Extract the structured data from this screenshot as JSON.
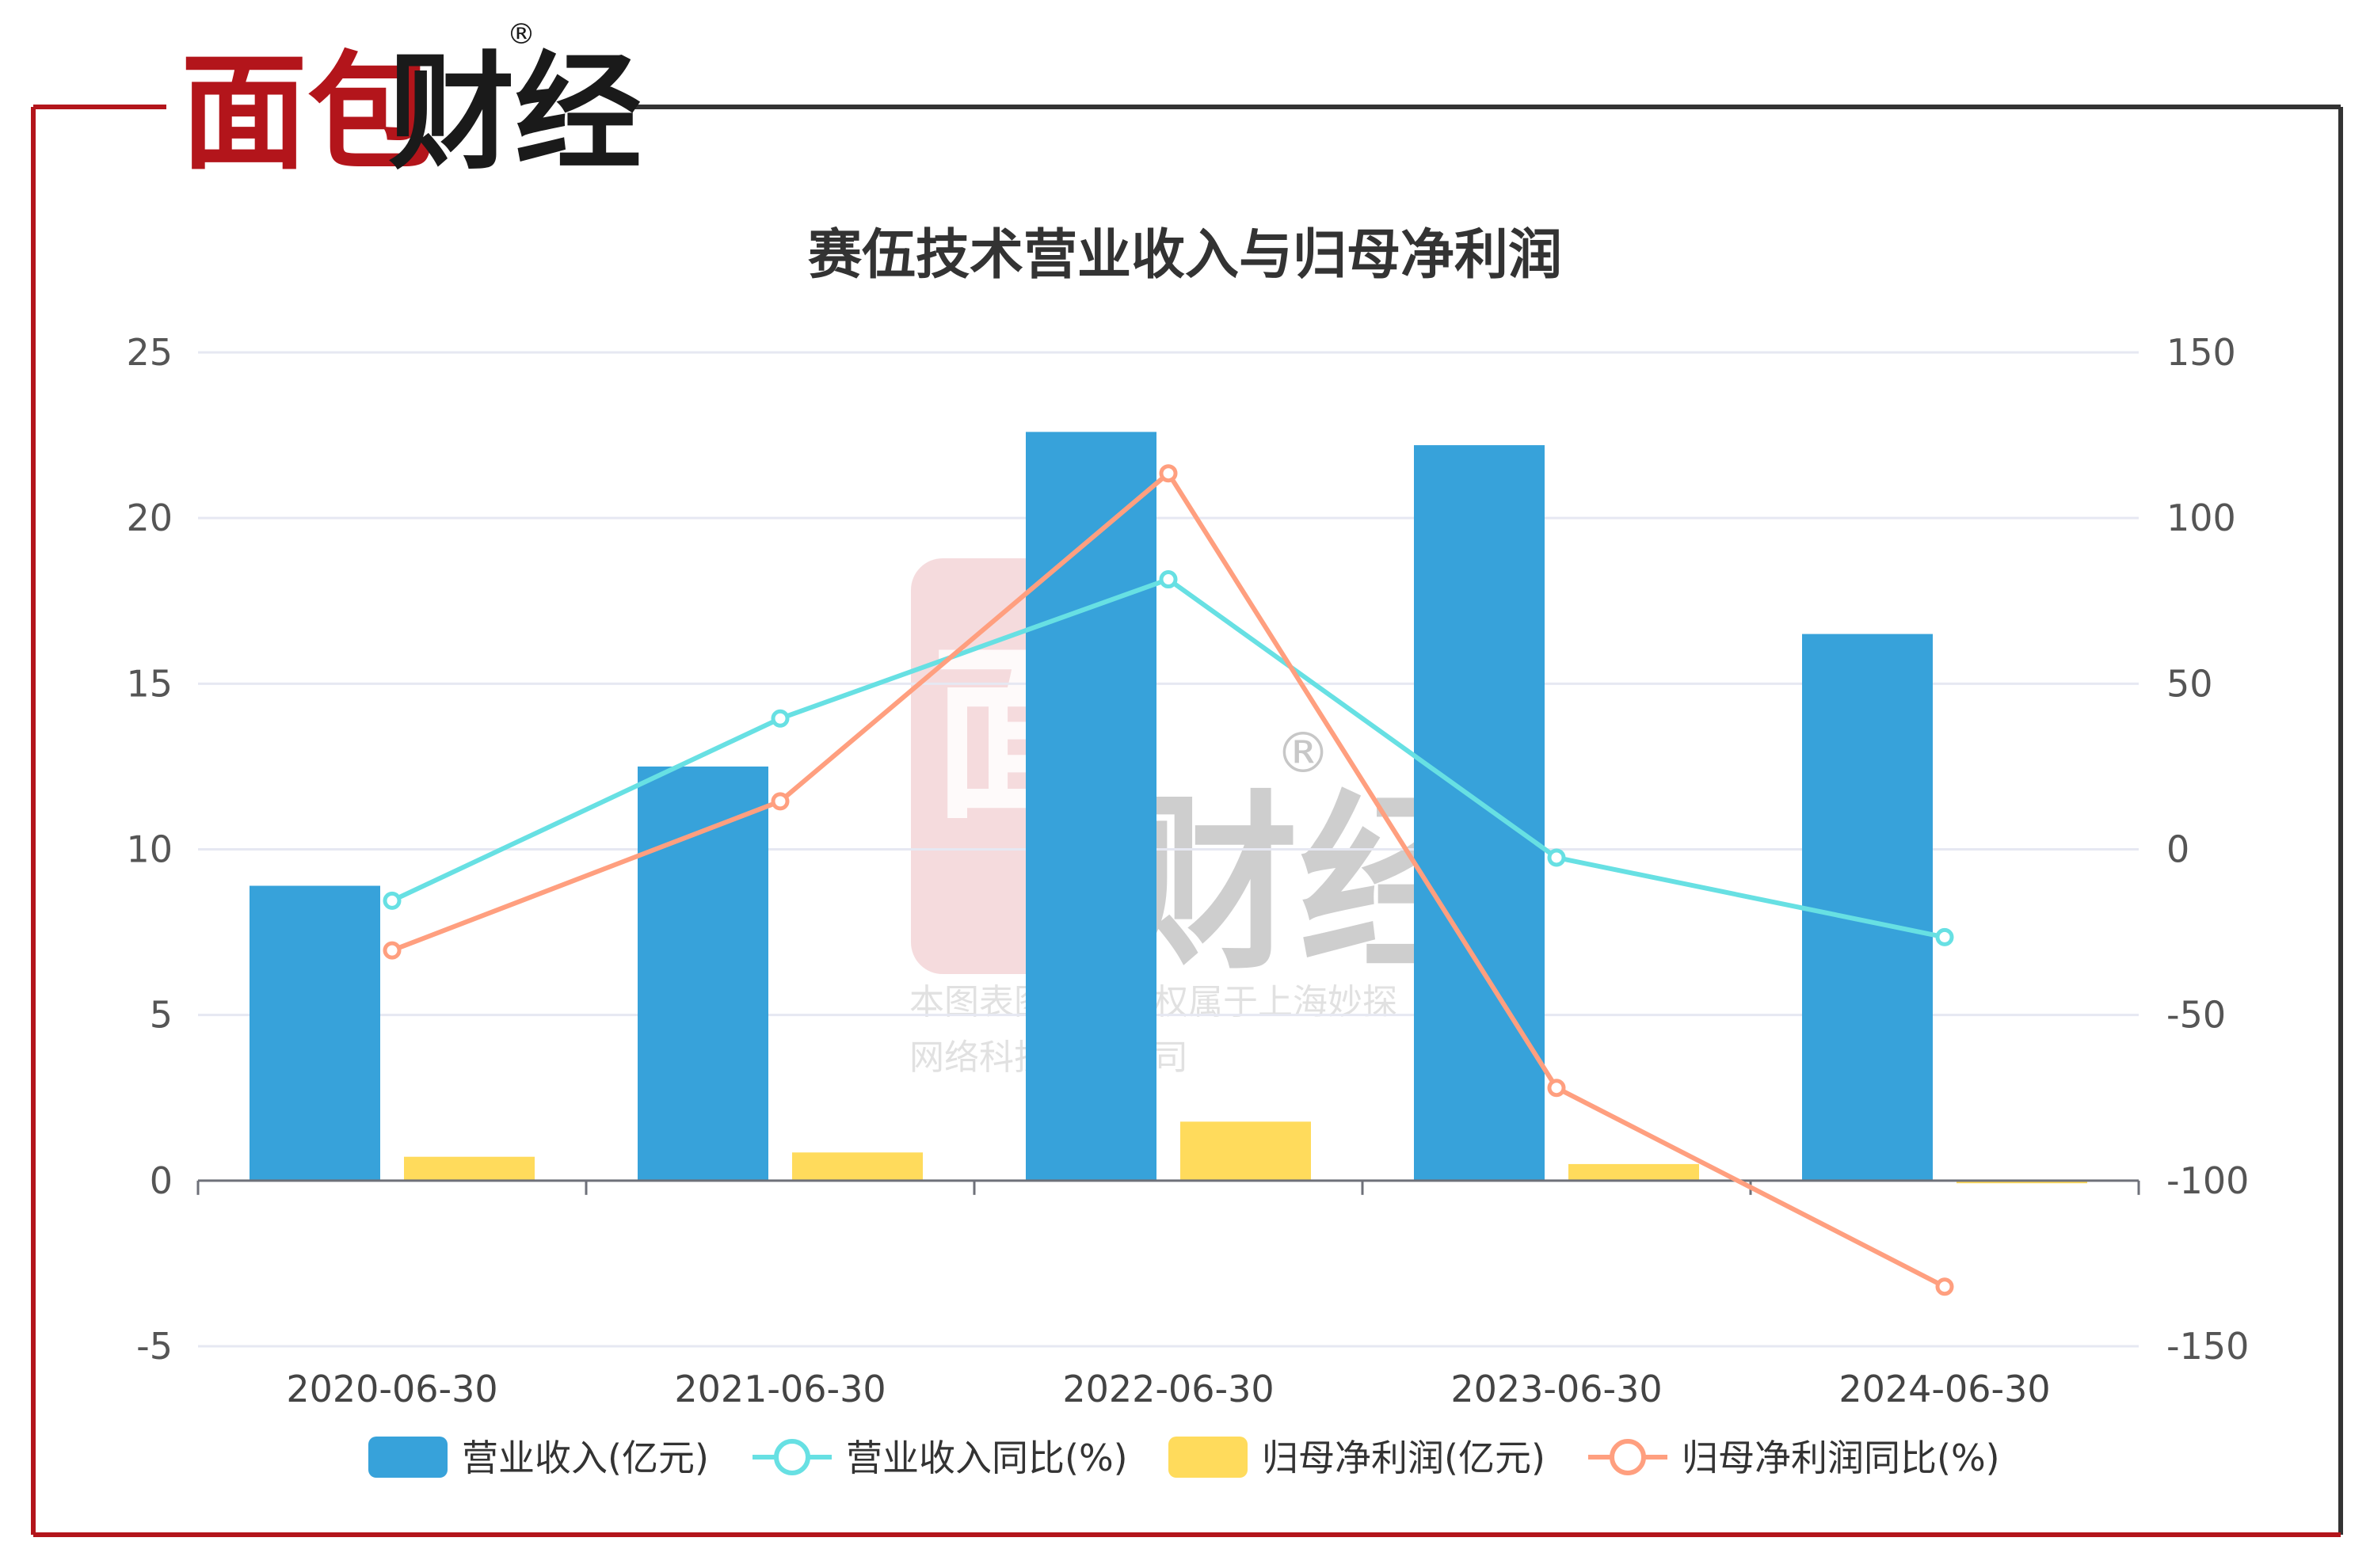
{
  "brand": {
    "logo_text": "面包财经",
    "registered_mark": "®",
    "red": "#b3151b",
    "black": "#1a1a1a"
  },
  "watermark": {
    "logo_text": "面包财经",
    "registered_mark": "®",
    "line1": "本图表图片著作权属于上海妙探",
    "line2": "网络科技有限公司"
  },
  "colors": {
    "frame_red": "#b3151b",
    "frame_dark": "#333333",
    "revenue": "#37a2da",
    "revenue_yoy": "#67e0e3",
    "profit": "#ffdb5c",
    "profit_yoy": "#ff9f7f",
    "grid": "#e6e8f2",
    "axis": "#6e7079"
  },
  "chart_data": {
    "type": "bar",
    "title": "赛伍技术营业收入与归母净利润",
    "categories": [
      "2020-06-30",
      "2021-06-30",
      "2022-06-30",
      "2023-06-30",
      "2024-06-30"
    ],
    "left_axis": {
      "ylim": [
        -5,
        25
      ],
      "ticks": [
        "25",
        "20",
        "15",
        "10",
        "5",
        "0",
        "-5"
      ],
      "tick_values": [
        25,
        20,
        15,
        10,
        5,
        0,
        -5
      ]
    },
    "right_axis": {
      "ylim": [
        -150,
        150
      ],
      "ticks": [
        "150",
        "100",
        "50",
        "0",
        "-50",
        "-100",
        "-150"
      ],
      "tick_values": [
        150,
        100,
        50,
        0,
        -50,
        -100,
        -150
      ]
    },
    "grid": true,
    "legend_position": "bottom",
    "series": [
      {
        "name": "营业收入(亿元)",
        "kind": "bar",
        "axis": "left",
        "color": "#37a2da",
        "values": [
          8.9,
          12.5,
          22.6,
          22.2,
          16.5
        ]
      },
      {
        "name": "营业收入同比(%)",
        "kind": "line",
        "axis": "right",
        "color": "#67e0e3",
        "values": [
          -15.5,
          39.5,
          81.5,
          -2.5,
          -26.5
        ]
      },
      {
        "name": "归母净利润(亿元)",
        "kind": "bar",
        "axis": "left",
        "color": "#ffdb5c",
        "values": [
          0.72,
          0.85,
          1.78,
          0.5,
          -0.08
        ]
      },
      {
        "name": "归母净利润同比(%)",
        "kind": "line",
        "axis": "right",
        "color": "#ff9f7f",
        "values": [
          -30.5,
          14.5,
          113.5,
          -72.0,
          -132.0
        ]
      }
    ]
  }
}
